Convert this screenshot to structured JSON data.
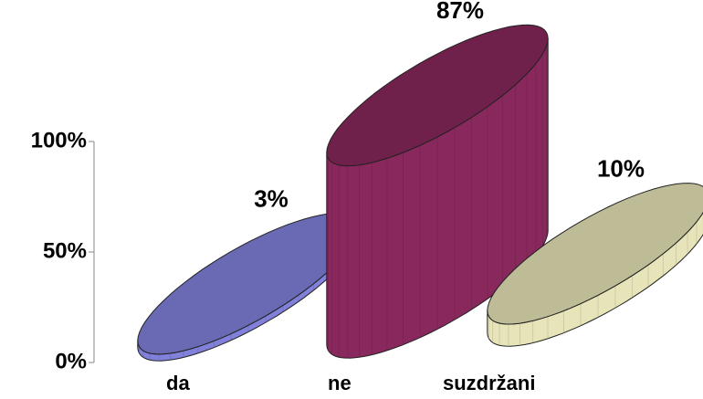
{
  "chart_data": {
    "type": "cylinder-bar",
    "categories": [
      "da",
      "ne",
      "suzdržani"
    ],
    "values": [
      3,
      87,
      10
    ],
    "value_labels": [
      "3%",
      "87%",
      "10%"
    ],
    "colors": [
      "#7373c4",
      "#7a2452",
      "#cdcca4"
    ],
    "ylim": [
      0,
      100
    ],
    "yticks": [
      {
        "value": 0,
        "label": "0%"
      },
      {
        "value": 50,
        "label": "50%"
      },
      {
        "value": 100,
        "label": "100%"
      }
    ]
  }
}
